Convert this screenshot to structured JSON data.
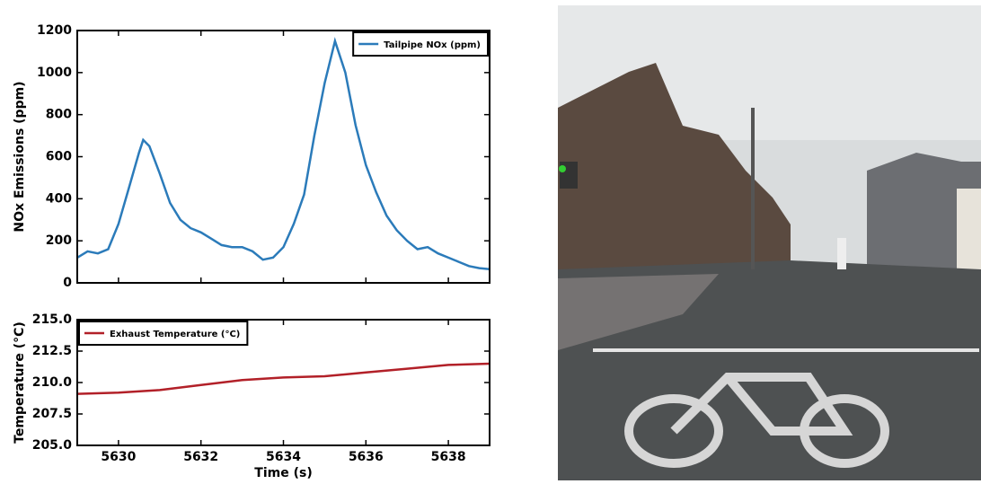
{
  "chart_data": [
    {
      "type": "line",
      "ylabel": "NOx Emissions (ppm)",
      "x": [
        5629,
        5629.25,
        5629.5,
        5629.75,
        5630,
        5630.25,
        5630.5,
        5630.6,
        5630.75,
        5631,
        5631.25,
        5631.5,
        5631.75,
        5632,
        5632.25,
        5632.5,
        5632.75,
        5633,
        5633.25,
        5633.5,
        5633.75,
        5634,
        5634.25,
        5634.5,
        5634.75,
        5635,
        5635.25,
        5635.5,
        5635.75,
        5636,
        5636.25,
        5636.5,
        5636.75,
        5637,
        5637.25,
        5637.5,
        5637.75,
        5638,
        5638.25,
        5638.5,
        5638.75,
        5639
      ],
      "series": [
        {
          "name": "Tailpipe NOx (ppm)",
          "color": "#2b7bba",
          "values": [
            120,
            150,
            140,
            160,
            280,
            450,
            620,
            680,
            650,
            520,
            380,
            300,
            260,
            240,
            210,
            180,
            170,
            170,
            150,
            110,
            120,
            170,
            280,
            420,
            700,
            950,
            1150,
            1000,
            750,
            560,
            430,
            320,
            250,
            200,
            160,
            170,
            140,
            120,
            100,
            80,
            70,
            65
          ]
        }
      ],
      "xlim": [
        5629,
        5639
      ],
      "xticks": [
        5630,
        5632,
        5634,
        5636,
        5638
      ],
      "xticklabels": false,
      "ylim": [
        0,
        1200
      ],
      "yticks": [
        0,
        200,
        400,
        600,
        800,
        1000,
        1200
      ],
      "legend": "upper right"
    },
    {
      "type": "line",
      "xlabel": "Time (s)",
      "ylabel": "Temperature (°C)",
      "x": [
        5629,
        5630,
        5631,
        5632,
        5633,
        5634,
        5635,
        5636,
        5637,
        5638,
        5639
      ],
      "series": [
        {
          "name": "Exhaust Temperature (°C)",
          "color": "#b22028",
          "values": [
            209.1,
            209.2,
            209.4,
            209.8,
            210.2,
            210.4,
            210.5,
            210.8,
            211.1,
            211.4,
            211.5
          ]
        }
      ],
      "xlim": [
        5629,
        5639
      ],
      "xticks": [
        5630,
        5632,
        5634,
        5636,
        5638
      ],
      "xticklabels": true,
      "ylim": [
        205,
        215
      ],
      "yticks": [
        {
          "value": 205,
          "label": "205.0"
        },
        207.5,
        {
          "value": 210,
          "label": "210.0"
        },
        212.5,
        {
          "value": 215,
          "label": "215.0"
        }
      ],
      "legend": "upper left"
    }
  ]
}
